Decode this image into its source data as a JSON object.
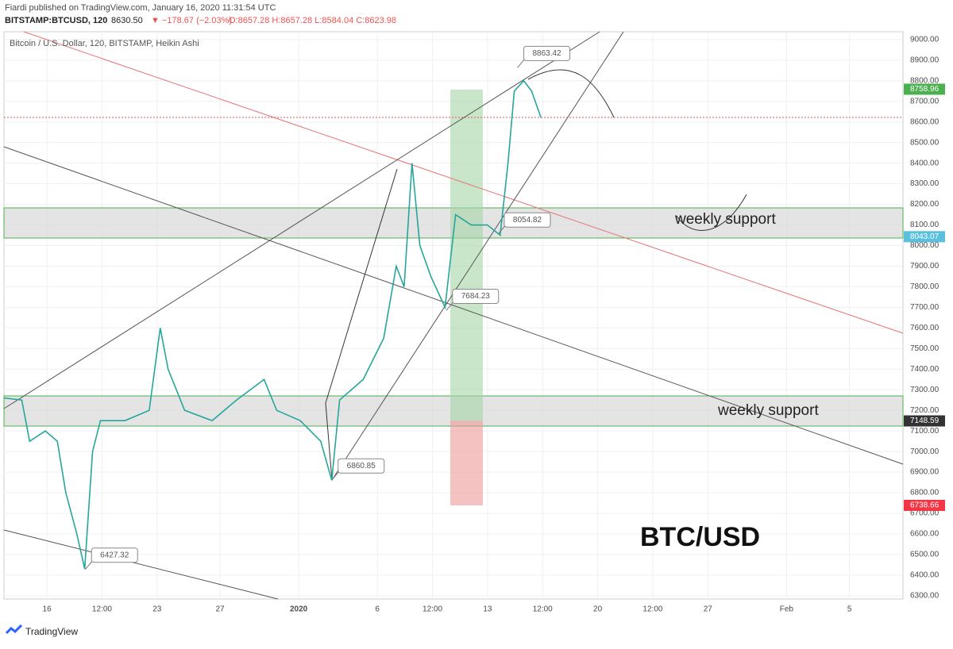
{
  "header": {
    "line1": "Fiardi published on TradingView.com, January 16, 2020 11:31:54 UTC",
    "symbol": "BITSTAMP:BTCUSD, 120",
    "last": "8630.50",
    "change": "▼ −178.67 (−2.03%)",
    "ohlc": "O:8657.28 H:8657.28 L:8584.04 C:8623.98"
  },
  "footer": "TradingView",
  "chart_data": {
    "type": "line",
    "subtitle": "Bitcoin / U.S. Dollar, 120, BITSTAMP, Heikin Ashi",
    "title": "BTC/USD",
    "annotations": [
      "weekly support",
      "weekly support"
    ],
    "x": [
      -2.73,
      -1.6,
      -1.1,
      -0.1,
      0.66,
      1.2,
      1.9,
      2.4,
      2.9,
      3.4,
      4.96,
      6.5,
      7.2,
      7.7,
      8.75,
      10.5,
      12.05,
      13.8,
      14.6,
      16.1,
      17.4,
      18.1,
      18.6,
      20.1,
      21.4,
      22.2,
      22.7,
      23.2,
      23.7,
      24.4,
      25.3,
      25.97,
      26.96,
      27.99,
      28.8,
      29.3,
      29.7,
      30.3,
      30.8,
      31.4
    ],
    "series": [
      {
        "name": "BITSTAMP:BTCUSD",
        "color": "#26a69a",
        "values": [
          7260,
          7250,
          7050,
          7100,
          7050,
          6800,
          6600,
          6430,
          7000,
          7150,
          7150,
          7200,
          7600,
          7400,
          7200,
          7150,
          7250,
          7350,
          7200,
          7150,
          7050,
          6860,
          7250,
          7350,
          7550,
          7900,
          7800,
          8400,
          8000,
          7850,
          7700,
          8150,
          8100,
          8100,
          8050,
          8400,
          8750,
          8800,
          8750,
          8620
        ]
      }
    ],
    "callouts": [
      {
        "x": 29.9,
        "value": 8863.42
      },
      {
        "x": 28.66,
        "value": 8054.82
      },
      {
        "x": 25.37,
        "value": 7684.23
      },
      {
        "x": 18.1,
        "value": 6860.85
      },
      {
        "x": 2.43,
        "value": 6427.32
      }
    ],
    "price_labels": [
      {
        "value": 8758.96,
        "color": "#4caf50"
      },
      {
        "value": 8043.07,
        "color": "#5bc0de"
      },
      {
        "value": 7148.59,
        "color": "#333333"
      },
      {
        "value": 6738.66,
        "color": "#f23645"
      }
    ],
    "xlim": [
      -2.73,
      54.4
    ],
    "xticks": [
      {
        "value": 0,
        "label": "16"
      },
      {
        "value": 3.5,
        "label": "12:00"
      },
      {
        "value": 7,
        "label": "23"
      },
      {
        "value": 11,
        "label": "27"
      },
      {
        "value": 16,
        "label": "2020"
      },
      {
        "value": 21,
        "label": "6"
      },
      {
        "value": 24.5,
        "label": "12:00"
      },
      {
        "value": 28,
        "label": "13"
      },
      {
        "value": 31.5,
        "label": "12:00"
      },
      {
        "value": 35,
        "label": "20"
      },
      {
        "value": 38.5,
        "label": "12:00"
      },
      {
        "value": 42,
        "label": "27"
      },
      {
        "value": 47,
        "label": "Feb"
      },
      {
        "value": 51,
        "label": "5"
      }
    ],
    "ylim": [
      6284,
      9038
    ],
    "yticks": [
      {
        "value": 6300,
        "label": "6300.00"
      },
      {
        "value": 6400,
        "label": "6400.00"
      },
      {
        "value": 6500,
        "label": "6500.00"
      },
      {
        "value": 6600,
        "label": "6600.00"
      },
      {
        "value": 6700,
        "label": "6700.00"
      },
      {
        "value": 6800,
        "label": "6800.00"
      },
      {
        "value": 6900,
        "label": "6900.00"
      },
      {
        "value": 7000,
        "label": "7000.00"
      },
      {
        "value": 7100,
        "label": "7100.00"
      },
      {
        "value": 7200,
        "label": "7200.00"
      },
      {
        "value": 7300,
        "label": "7300.00"
      },
      {
        "value": 7400,
        "label": "7400.00"
      },
      {
        "value": 7500,
        "label": "7500.00"
      },
      {
        "value": 7600,
        "label": "7600.00"
      },
      {
        "value": 7700,
        "label": "7700.00"
      },
      {
        "value": 7800,
        "label": "7800.00"
      },
      {
        "value": 7900,
        "label": "7900.00"
      },
      {
        "value": 8000,
        "label": "8000.00"
      },
      {
        "value": 8100,
        "label": "8100.00"
      },
      {
        "value": 8200,
        "label": "8200.00"
      },
      {
        "value": 8300,
        "label": "8300.00"
      },
      {
        "value": 8400,
        "label": "8400.00"
      },
      {
        "value": 8500,
        "label": "8500.00"
      },
      {
        "value": 8600,
        "label": "8600.00"
      },
      {
        "value": 8700,
        "label": "8700.00"
      },
      {
        "value": 8800,
        "label": "8800.00"
      },
      {
        "value": 8900,
        "label": "8900.00"
      },
      {
        "value": 9000,
        "label": "9000.00"
      }
    ],
    "grid": true
  }
}
